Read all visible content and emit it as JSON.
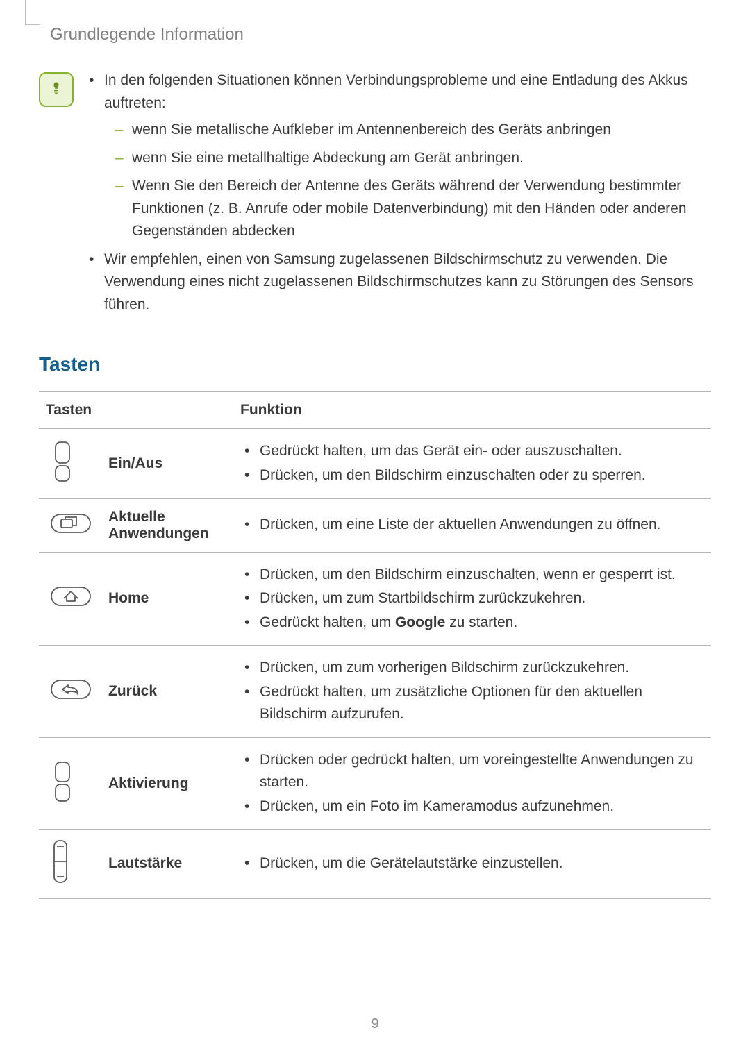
{
  "header": {
    "title": "Grundlegende Information"
  },
  "note": {
    "bullets": [
      {
        "text": "In den folgenden Situationen können Verbindungsprobleme und eine Entladung des Akkus auftreten:",
        "sub": [
          "wenn Sie metallische Aufkleber im Antennenbereich des Geräts anbringen",
          "wenn Sie eine metallhaltige Abdeckung am Gerät anbringen.",
          "Wenn Sie den Bereich der Antenne des Geräts während der Verwendung bestimmter Funktionen (z. B. Anrufe oder mobile Datenverbindung) mit den Händen oder anderen Gegenständen abdecken"
        ]
      },
      {
        "text": "Wir empfehlen, einen von Samsung zugelassenen Bildschirmschutz zu verwenden. Die Verwendung eines nicht zugelassenen Bildschirmschutzes kann zu Störungen des Sensors führen."
      }
    ]
  },
  "section": {
    "heading": "Tasten"
  },
  "table": {
    "headers": {
      "col1": "Tasten",
      "col2": "Funktion"
    },
    "rows": [
      {
        "name": "Ein/Aus",
        "functions": [
          "Gedrückt halten, um das Gerät ein- oder auszuschalten.",
          "Drücken, um den Bildschirm einzuschalten oder zu sperren."
        ]
      },
      {
        "name": "Aktuelle Anwendungen",
        "functions": [
          "Drücken, um eine Liste der aktuellen Anwendungen zu öffnen."
        ]
      },
      {
        "name": "Home",
        "functions": [
          "Drücken, um den Bildschirm einzuschalten, wenn er gesperrt ist.",
          "Drücken, um zum Startbildschirm zurückzukehren.",
          "Gedrückt halten, um <b>Google</b> zu starten."
        ]
      },
      {
        "name": "Zurück",
        "functions": [
          "Drücken, um zum vorherigen Bildschirm zurückzukehren.",
          "Gedrückt halten, um zusätzliche Optionen für den aktuellen Bildschirm aufzurufen."
        ]
      },
      {
        "name": "Aktivierung",
        "functions": [
          "Drücken oder gedrückt halten, um voreingestellte Anwendungen zu starten.",
          "Drücken, um ein Foto im Kameramodus aufzunehmen."
        ]
      },
      {
        "name": "Lautstärke",
        "functions": [
          "Drücken, um die Gerätelautstärke einzustellen."
        ]
      }
    ]
  },
  "footer": {
    "page_number": "9"
  },
  "colors": {
    "header_text": "#808080",
    "heading_blue": "#145f8d",
    "body_text": "#3a3a3a",
    "note_border": "#86b22e",
    "note_bg": "#ecf4d6",
    "table_border": "#b5b5b5",
    "sub_dash": "#86b22e"
  },
  "typography": {
    "header_fontsize": 24,
    "body_fontsize": 21,
    "heading_fontsize": 28,
    "table_fontsize": 21
  }
}
